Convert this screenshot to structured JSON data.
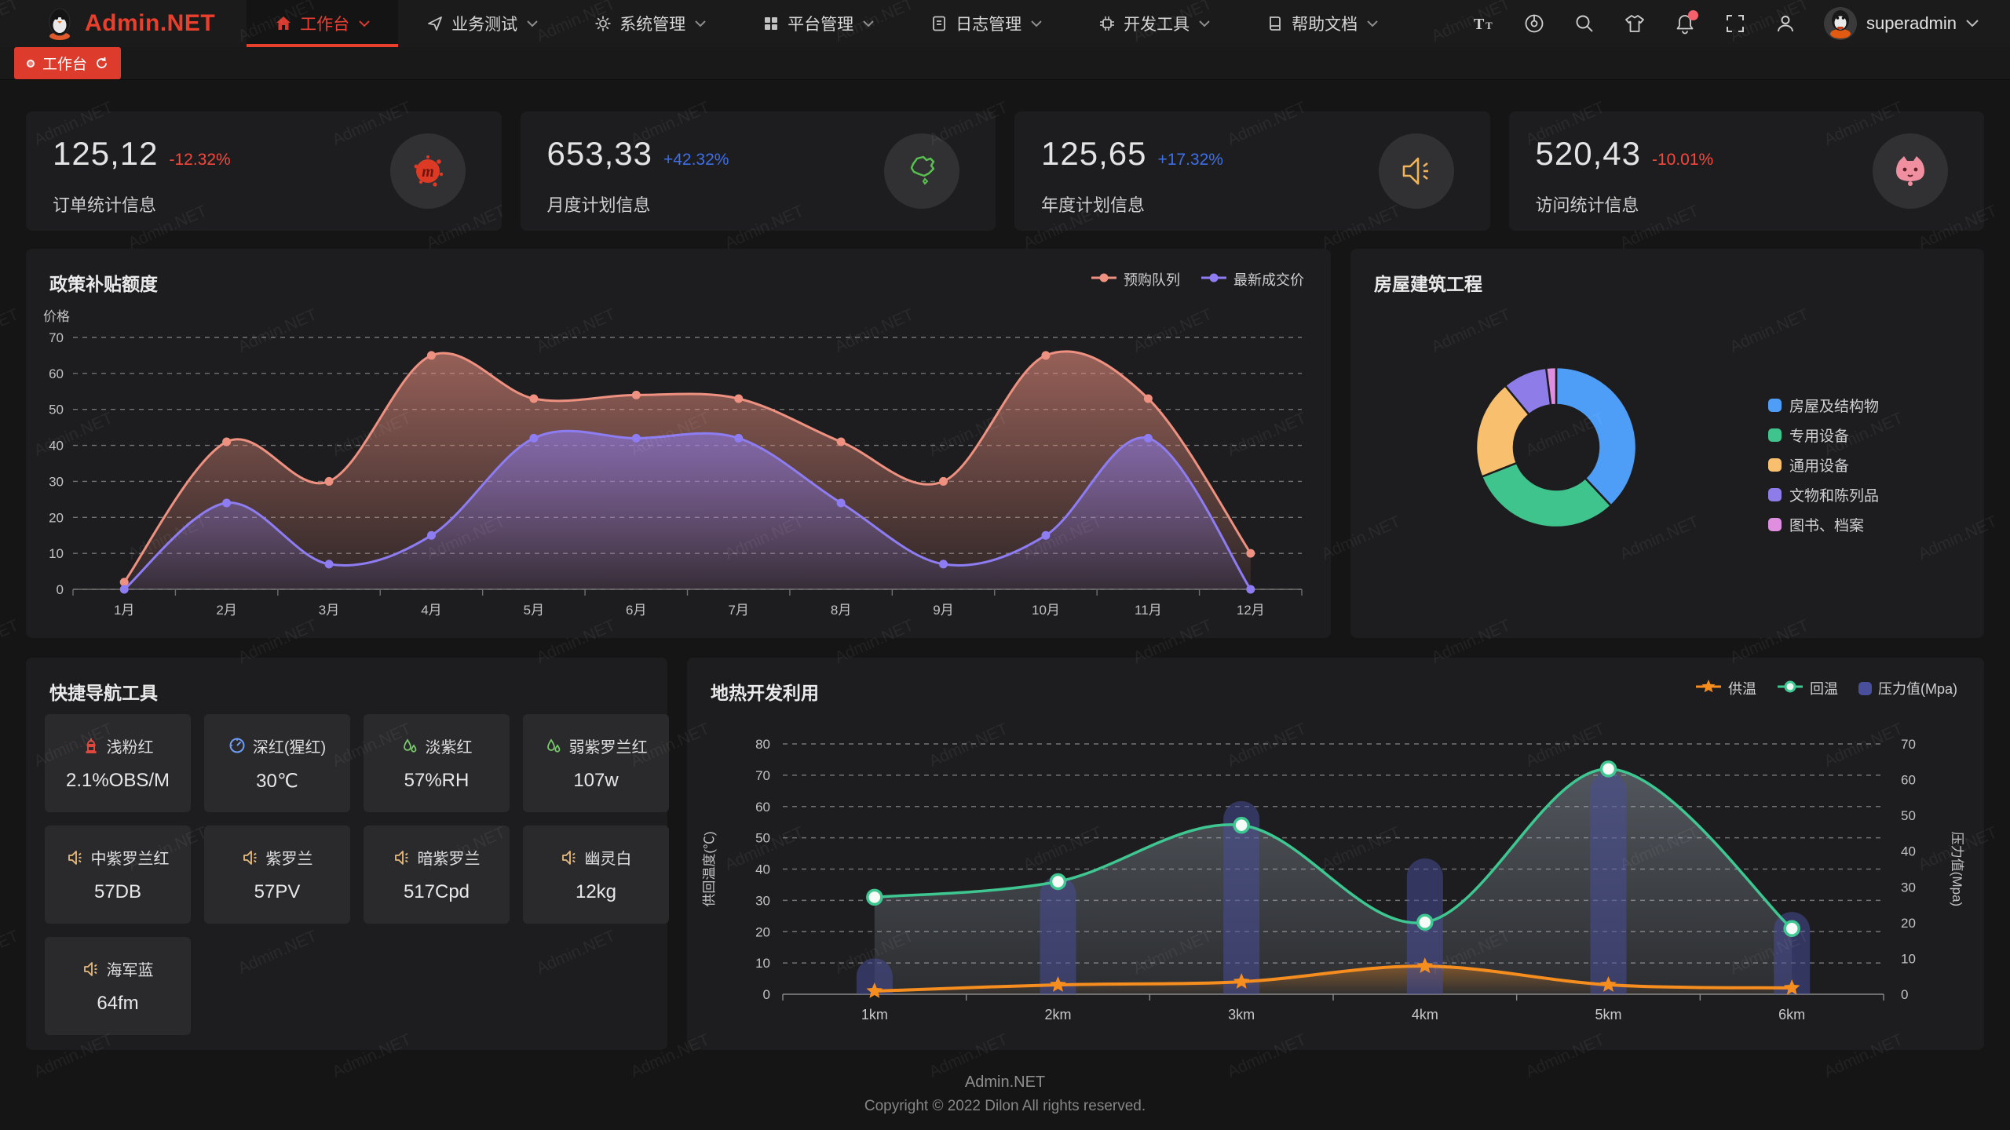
{
  "brand": {
    "name": "Admin.NET",
    "accent_color": "#e8402c"
  },
  "header": {
    "menu": [
      {
        "label": "工作台",
        "icon": "home-icon",
        "active": true
      },
      {
        "label": "业务测试",
        "icon": "send-icon",
        "active": false
      },
      {
        "label": "系统管理",
        "icon": "gear-icon",
        "active": false
      },
      {
        "label": "平台管理",
        "icon": "grid-icon",
        "active": false
      },
      {
        "label": "日志管理",
        "icon": "log-icon",
        "active": false
      },
      {
        "label": "开发工具",
        "icon": "chip-icon",
        "active": false
      },
      {
        "label": "帮助文档",
        "icon": "book-icon",
        "active": false
      }
    ],
    "username": "superadmin"
  },
  "tabs": [
    {
      "label": "工作台",
      "active": true
    }
  ],
  "stats": [
    {
      "value": "125,12",
      "delta": "-12.32%",
      "trend": "down",
      "label": "订单统计信息",
      "icon": "meetup-splat-icon"
    },
    {
      "value": "653,33",
      "delta": "+42.32%",
      "trend": "up",
      "label": "月度计划信息",
      "icon": "china-map-icon"
    },
    {
      "value": "125,65",
      "delta": "+17.32%",
      "trend": "up",
      "label": "年度计划信息",
      "icon": "speaker-icon"
    },
    {
      "value": "520,43",
      "delta": "-10.01%",
      "trend": "down",
      "label": "访问统计信息",
      "icon": "cat-icon"
    }
  ],
  "quick_nav": {
    "title": "快捷导航工具",
    "items": [
      {
        "name": "浅粉红",
        "value": "2.1%OBS/M",
        "icon": "hydrant-icon",
        "color": "#e0483e"
      },
      {
        "name": "深红(猩红)",
        "value": "30℃",
        "icon": "gauge-icon",
        "color": "#6f9ef7"
      },
      {
        "name": "淡紫红",
        "value": "57%RH",
        "icon": "drops-icon",
        "color": "#79c96d"
      },
      {
        "name": "弱紫罗兰红",
        "value": "107w",
        "icon": "drops-icon",
        "color": "#79c96d"
      },
      {
        "name": "中紫罗兰红",
        "value": "57DB",
        "icon": "speaker-icon",
        "color": "#e7bb7d"
      },
      {
        "name": "紫罗兰",
        "value": "57PV",
        "icon": "speaker-icon",
        "color": "#e7bb7d"
      },
      {
        "name": "暗紫罗兰",
        "value": "517Cpd",
        "icon": "speaker-icon",
        "color": "#e7bb7d"
      },
      {
        "name": "幽灵白",
        "value": "12kg",
        "icon": "speaker-icon",
        "color": "#e7bb7d"
      },
      {
        "name": "海军蓝",
        "value": "64fm",
        "icon": "speaker-icon",
        "color": "#e7bb7d"
      }
    ]
  },
  "chart_data": [
    {
      "type": "area",
      "title": "政策补贴额度",
      "ylabel": "价格",
      "ylim": [
        0,
        70
      ],
      "ytick_step": 10,
      "grid": "dashed",
      "legend_position": "top-right",
      "categories": [
        "1月",
        "2月",
        "3月",
        "4月",
        "5月",
        "6月",
        "7月",
        "8月",
        "9月",
        "10月",
        "11月",
        "12月"
      ],
      "series": [
        {
          "name": "预购队列",
          "color": "#ee9181",
          "values": [
            2,
            41,
            30,
            65,
            53,
            54,
            53,
            41,
            30,
            65,
            53,
            10
          ]
        },
        {
          "name": "最新成交价",
          "color": "#8d7cf2",
          "values": [
            0,
            24,
            7,
            15,
            42,
            42,
            42,
            24,
            7,
            15,
            42,
            0
          ]
        }
      ]
    },
    {
      "type": "pie",
      "title": "房屋建筑工程",
      "donut": true,
      "legend_position": "right",
      "slices": [
        {
          "name": "房屋及结构物",
          "value": 38,
          "color": "#4e9ef7"
        },
        {
          "name": "专用设备",
          "value": 31,
          "color": "#3ec48c"
        },
        {
          "name": "通用设备",
          "value": 20,
          "color": "#f8c06e"
        },
        {
          "name": "文物和陈列品",
          "value": 9,
          "color": "#8e7ce8"
        },
        {
          "name": "图书、档案",
          "value": 2,
          "color": "#e08ee0"
        }
      ]
    },
    {
      "type": "line-bar",
      "title": "地热开发利用",
      "categories": [
        "1km",
        "2km",
        "3km",
        "4km",
        "5km",
        "6km"
      ],
      "ylabel_left": "供回温度(℃)",
      "ylim_left": [
        0,
        80
      ],
      "ylabel_right": "压力值(Mpa)",
      "ylim_right": [
        0,
        70
      ],
      "grid": "dashed",
      "legend_position": "top-right",
      "series": [
        {
          "name": "供温",
          "kind": "line",
          "axis": "left",
          "symbol": "star",
          "color": "#f68d1f",
          "values": [
            1,
            3,
            4,
            9,
            3,
            2
          ]
        },
        {
          "name": "回温",
          "kind": "line",
          "axis": "left",
          "symbol": "circle",
          "color": "#3fc792",
          "values": [
            31,
            36,
            54,
            23,
            72,
            21
          ]
        },
        {
          "name": "压力值(Mpa)",
          "kind": "bar",
          "axis": "right",
          "color": "#494f9b",
          "values": [
            10,
            33,
            54,
            38,
            62,
            23
          ]
        }
      ]
    }
  ],
  "footer": {
    "line1": "Admin.NET",
    "line2": "Copyright © 2022 Dilon All rights reserved."
  },
  "watermark": "Admin.NET"
}
